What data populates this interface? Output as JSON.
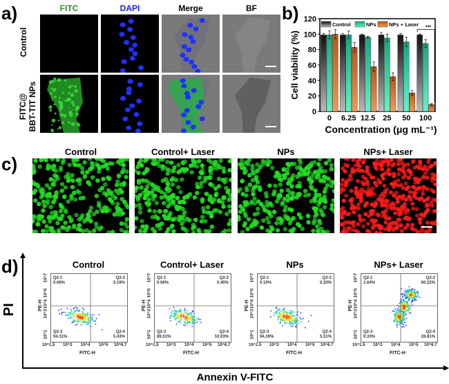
{
  "panel_labels": {
    "a": "a)",
    "b": "b)",
    "c": "c)",
    "d": "d)"
  },
  "panel_a": {
    "columns": [
      "FITC",
      "DAPI",
      "Merge",
      "BF"
    ],
    "column_colors": [
      "#2e8b2e",
      "#1a1aff",
      "#000000",
      "#000000"
    ],
    "rows": [
      {
        "label_line1": "Control",
        "label_line2": ""
      },
      {
        "label_line1": "FITC@",
        "label_line2": "BBT-TIT NPs"
      }
    ]
  },
  "chart_data": {
    "type": "bar",
    "categories": [
      "0",
      "6.25",
      "12.5",
      "25",
      "50",
      "100"
    ],
    "series": [
      {
        "name": "Control",
        "values": [
          99,
          99,
          99,
          99,
          99,
          99
        ],
        "errors": [
          2,
          2,
          1,
          3,
          2,
          1
        ],
        "color": "#333333"
      },
      {
        "name": "NPs",
        "values": [
          99,
          99,
          96,
          95,
          90,
          88
        ],
        "errors": [
          5,
          5,
          1,
          5,
          6,
          5
        ],
        "color": "#2fd9a8"
      },
      {
        "name": "NPs + Laser",
        "values": [
          100,
          83,
          58,
          45,
          24,
          9
        ],
        "errors": [
          6,
          6,
          6,
          5,
          3,
          1
        ],
        "color": "#e07a2a"
      }
    ],
    "xlabel": "Concentration (μg mL⁻¹)",
    "ylabel": "Cell viability (%)",
    "ylim": [
      0,
      120
    ],
    "yticks": [
      "0",
      "20",
      "40",
      "60",
      "80",
      "100",
      "120"
    ],
    "significance": "***",
    "legend": "top"
  },
  "panel_c": {
    "titles": [
      "Control",
      "Control+ Laser",
      "NPs",
      "NPs+ Laser"
    ],
    "stain_colors": [
      "#22dd22",
      "#22dd22",
      "#22dd22",
      "#ff1a1a"
    ]
  },
  "panel_d": {
    "y_axis_label": "PI",
    "x_axis_label": "Annexin V-FITC",
    "plot_xlabel": "FITC-H",
    "plot_ylabel": "PE-H",
    "x_ticks": [
      "10^1.5",
      "10^3",
      "10^4",
      "10^5",
      "10^6.7"
    ],
    "y_ticks": [
      "10^1",
      "10^3",
      "10^4",
      "10^5",
      "10^7"
    ],
    "plots": [
      {
        "title": "Control",
        "q1": "Q2-1",
        "q1v": "0.06%",
        "q2": "Q2-2",
        "q2v": "0.19%",
        "q3": "Q2-3",
        "q3v": "94.31%",
        "q4": "Q2-4",
        "q4v": "5.43%"
      },
      {
        "title": "Control+ Laser",
        "q1": "Q2-1",
        "q1v": "0.06%",
        "q2": "Q2-2",
        "q2v": "0.40%",
        "q3": "Q2-3",
        "q3v": "89.51%",
        "q4": "Q2-4",
        "q4v": "10.03%"
      },
      {
        "title": "NPs",
        "q1": "Q2-1",
        "q1v": "0.10%",
        "q2": "Q2-2",
        "q2v": "0.20%",
        "q3": "Q2-3",
        "q3v": "94.19%",
        "q4": "Q2-4",
        "q4v": "5.51%"
      },
      {
        "title": "NPs+ Laser",
        "q1": "Q2-1",
        "q1v": "1.64%",
        "q2": "Q2-2",
        "q2v": "60.22%",
        "q3": "Q2-3",
        "q3v": "9.33%",
        "q4": "Q2-4",
        "q4v": "28.81%"
      }
    ]
  }
}
